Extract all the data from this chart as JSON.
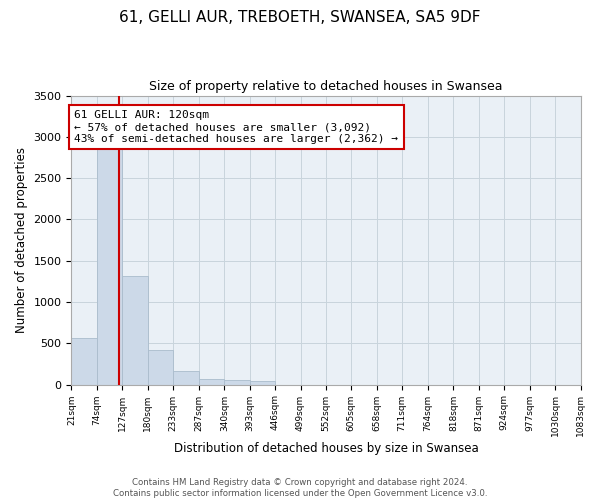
{
  "title": "61, GELLI AUR, TREBOETH, SWANSEA, SA5 9DF",
  "subtitle": "Size of property relative to detached houses in Swansea",
  "xlabel": "Distribution of detached houses by size in Swansea",
  "ylabel": "Number of detached properties",
  "bar_color": "#ccd9e8",
  "bar_edge_color": "#aabccc",
  "background_color": "#eaf0f6",
  "grid_color": "#c8d4dc",
  "vline_color": "#cc0000",
  "vline_value": 120,
  "annotation_text": "61 GELLI AUR: 120sqm\n← 57% of detached houses are smaller (3,092)\n43% of semi-detached houses are larger (2,362) →",
  "annotation_box_edge_color": "#cc0000",
  "bin_edges": [
    21,
    74,
    127,
    180,
    233,
    287,
    340,
    393,
    446,
    499,
    552,
    605,
    658,
    711,
    764,
    818,
    871,
    924,
    977,
    1030,
    1083
  ],
  "bin_counts": [
    570,
    2900,
    1320,
    415,
    160,
    65,
    50,
    40,
    0,
    0,
    0,
    0,
    0,
    0,
    0,
    0,
    0,
    0,
    0,
    0
  ],
  "ylim": [
    0,
    3500
  ],
  "yticks": [
    0,
    500,
    1000,
    1500,
    2000,
    2500,
    3000,
    3500
  ],
  "footnote": "Contains HM Land Registry data © Crown copyright and database right 2024.\nContains public sector information licensed under the Open Government Licence v3.0."
}
